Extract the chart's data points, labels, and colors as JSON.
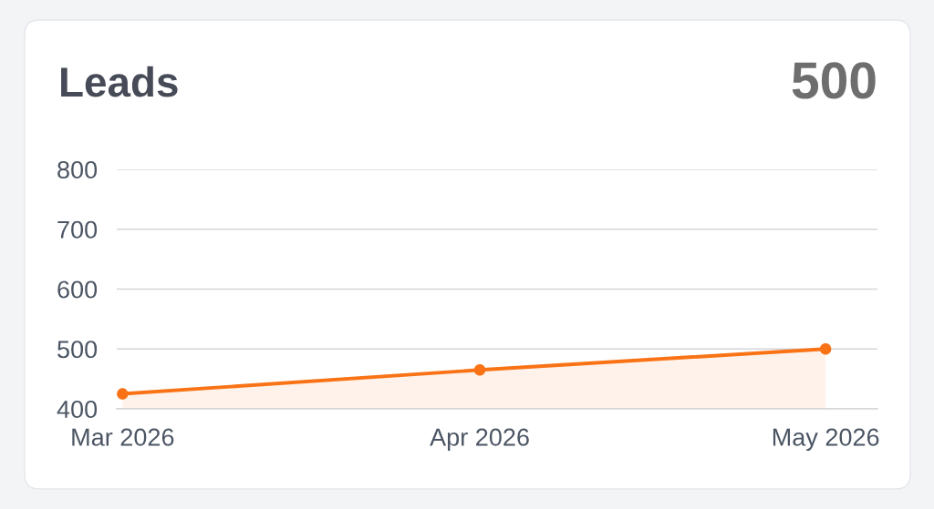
{
  "chart_data": {
    "type": "area",
    "title": "Leads",
    "annotations": [
      "500"
    ],
    "x": [
      "2026-03",
      "2026-04",
      "2026-05"
    ],
    "series": [
      {
        "color": "#f97316",
        "values": [
          425,
          465,
          500
        ]
      }
    ],
    "xlim": [
      "2026-02-28T12:00",
      "2026-05-05T12:00"
    ],
    "xticks": [
      {
        "value": "2026-03",
        "label": "Mar 2026"
      },
      {
        "value": "2026-04",
        "label": "Apr 2026"
      },
      {
        "value": "2026-05",
        "label": "May 2026"
      }
    ],
    "ylim": [
      400,
      800
    ],
    "yticks": [
      400,
      500,
      600,
      700,
      800
    ],
    "grid": "y",
    "marker": "circle",
    "line_style": "solid"
  }
}
